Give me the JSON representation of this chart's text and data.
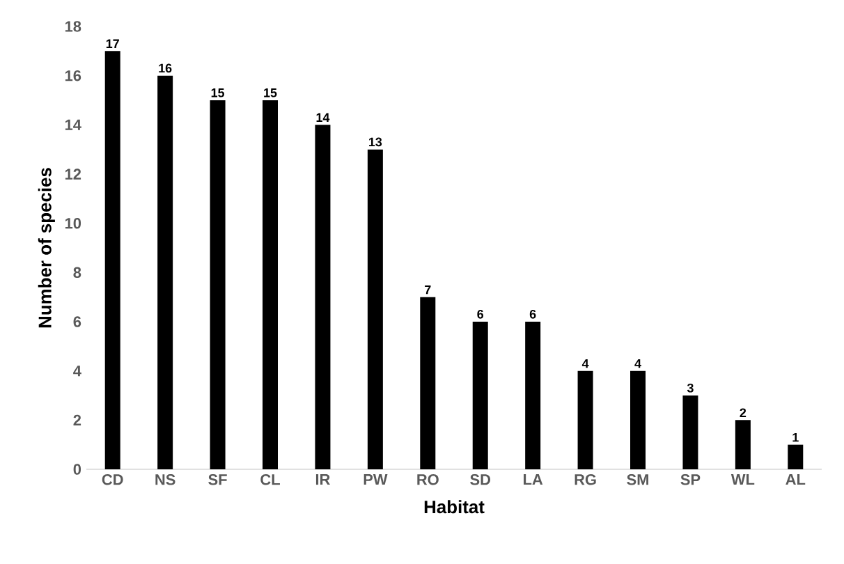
{
  "chart_data": {
    "type": "bar",
    "xlabel": "Habitat",
    "ylabel": "Number of species",
    "categories": [
      "CD",
      "NS",
      "SF",
      "CL",
      "IR",
      "PW",
      "RO",
      "SD",
      "LA",
      "RG",
      "SM",
      "SP",
      "WL",
      "AL"
    ],
    "values": [
      17,
      16,
      15,
      15,
      14,
      13,
      7,
      6,
      6,
      4,
      4,
      3,
      2,
      1
    ],
    "color": "#000000",
    "ylim": [
      0,
      18
    ],
    "yticks": [
      0,
      2,
      4,
      6,
      8,
      10,
      12,
      14,
      16,
      18
    ],
    "data_labels": true
  }
}
